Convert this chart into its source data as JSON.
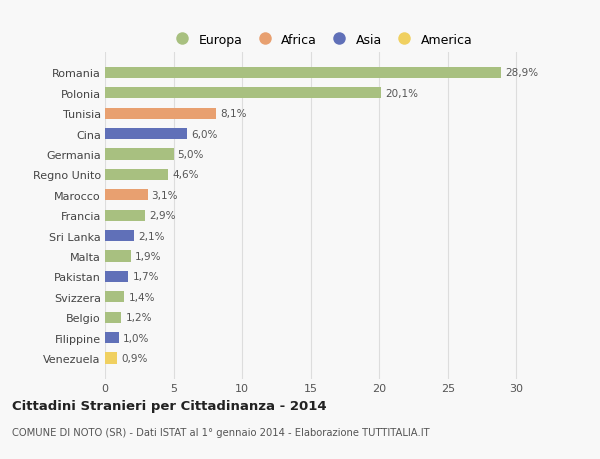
{
  "countries": [
    "Venezuela",
    "Filippine",
    "Belgio",
    "Svizzera",
    "Pakistan",
    "Malta",
    "Sri Lanka",
    "Francia",
    "Marocco",
    "Regno Unito",
    "Germania",
    "Cina",
    "Tunisia",
    "Polonia",
    "Romania"
  ],
  "values": [
    0.9,
    1.0,
    1.2,
    1.4,
    1.7,
    1.9,
    2.1,
    2.9,
    3.1,
    4.6,
    5.0,
    6.0,
    8.1,
    20.1,
    28.9
  ],
  "labels": [
    "0,9%",
    "1,0%",
    "1,2%",
    "1,4%",
    "1,7%",
    "1,9%",
    "2,1%",
    "2,9%",
    "3,1%",
    "4,6%",
    "5,0%",
    "6,0%",
    "8,1%",
    "20,1%",
    "28,9%"
  ],
  "categories": [
    "America",
    "Asia",
    "Europa",
    "Europa",
    "Asia",
    "Europa",
    "Asia",
    "Europa",
    "Africa",
    "Europa",
    "Europa",
    "Asia",
    "Africa",
    "Europa",
    "Europa"
  ],
  "colors": {
    "Europa": "#a8c080",
    "Africa": "#e8a070",
    "Asia": "#6070b8",
    "America": "#f0d060"
  },
  "xlim": [
    0,
    31.5
  ],
  "xticks": [
    0,
    5,
    10,
    15,
    20,
    25,
    30
  ],
  "title": "Cittadini Stranieri per Cittadinanza - 2014",
  "subtitle": "COMUNE DI NOTO (SR) - Dati ISTAT al 1° gennaio 2014 - Elaborazione TUTTITALIA.IT",
  "background_color": "#f8f8f8",
  "bar_height": 0.55,
  "grid_color": "#dddddd",
  "legend_order": [
    "Europa",
    "Africa",
    "Asia",
    "America"
  ]
}
